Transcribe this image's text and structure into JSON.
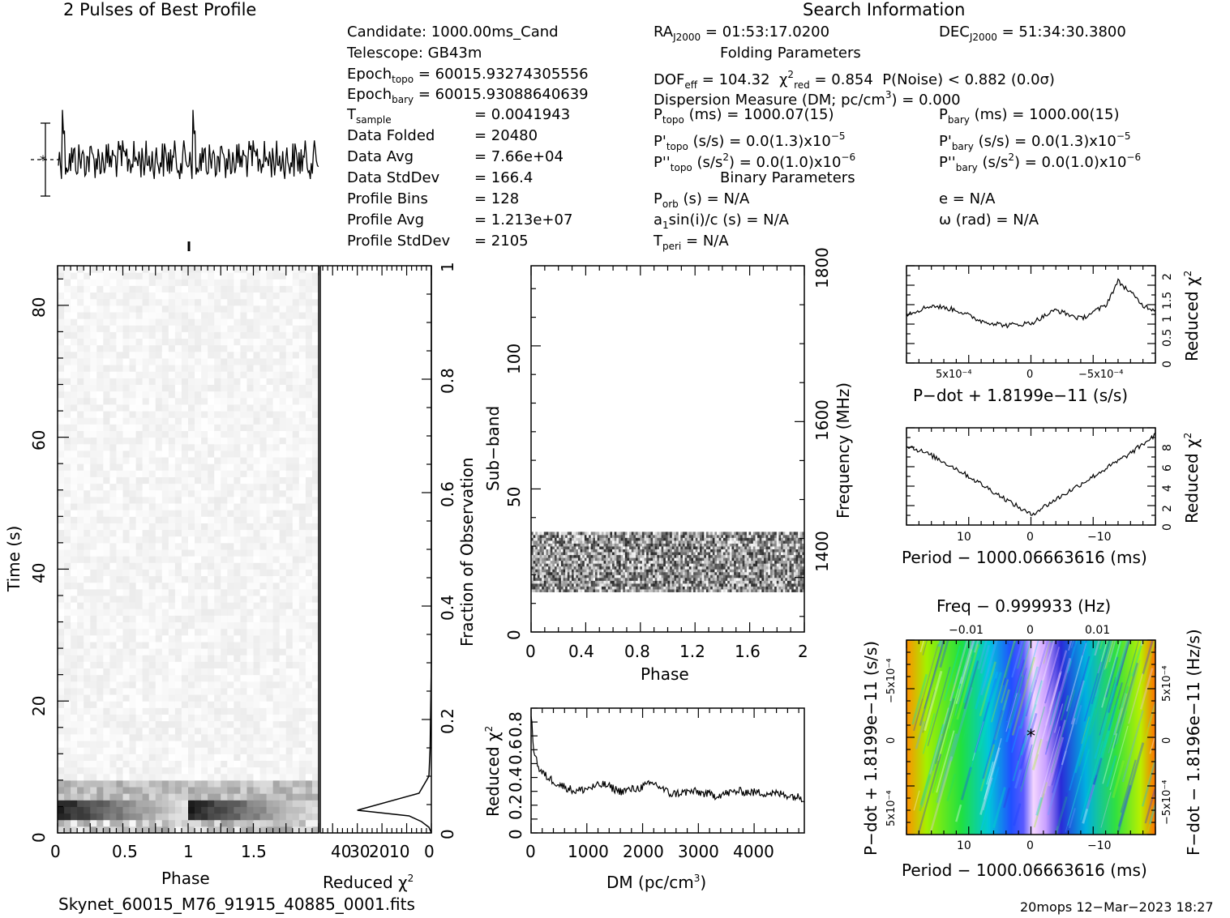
{
  "header": {
    "profile_title": "2 Pulses of Best Profile",
    "search_title": "Search Information",
    "folding_title": "Folding Parameters",
    "binary_title": "Binary Parameters"
  },
  "info": {
    "candidate": "Candidate:  1000.00ms_Cand",
    "telescope": "Telescope:  GB43m",
    "epoch_topo": "= 60015.93274305556",
    "epoch_bary": "= 60015.93088640639",
    "t_sample": "=   0.0041943",
    "data_folded_label": "Data Folded",
    "data_folded": "=   20480",
    "data_avg_label": "Data Avg",
    "data_avg": "=   7.66e+04",
    "data_stddev_label": "Data StdDev",
    "data_stddev": "=   166.4",
    "profile_bins_label": "Profile Bins",
    "profile_bins": "=   128",
    "profile_avg_label": "Profile Avg",
    "profile_avg": "=   1.213e+07",
    "profile_stddev_label": "Profile StdDev",
    "profile_stddev": "=   2105"
  },
  "search": {
    "ra": "= 01:53:17.0200",
    "dec": "= 51:34:30.3800",
    "dof": "= 104.32",
    "chi2": "= 0.854",
    "pnoise": "P(Noise) < 0.882  (0.0σ)",
    "dm_line": "Dispersion Measure (DM; pc/cm",
    "dm_value": ") = 0.000",
    "p_topo": "(ms) =  1000.07(15)",
    "p_bary": "(ms) =  1000.00(15)",
    "pd_topo": "(s/s) = 0.0(1.3)x10",
    "pd_topo_exp": "−5",
    "pd_bary": "(s/s) = 0.0(1.3)x10",
    "pd_bary_exp": "−5",
    "pdd_topo": "(s/s",
    "pdd_topo_tail": ") = 0.0(1.0)x10",
    "pdd_topo_exp": "−6",
    "pdd_bary": "(s/s",
    "pdd_bary_tail": ") = 0.0(1.0)x10",
    "pdd_bary_exp": "−6",
    "porb": "(s) = N/A",
    "e": "e = N/A",
    "a1": "sin(i)/c (s) = N/A",
    "omega": "ω (rad) = N/A",
    "tperi": "= N/A"
  },
  "footer": {
    "filename": "Skynet_60015_M76_91915_40885_0001.fits",
    "stamp": "20mops 12−Mar−2023 18:27"
  },
  "axes": {
    "phase": "Phase",
    "time": "Time (s)",
    "reduced_chi2": "Reduced χ",
    "fraction": "Fraction of Observation",
    "subband": "Sub−band",
    "frequency": "Frequency (MHz)",
    "dm": "DM (pc/cm",
    "pdot": "P−dot + 1.8199e−11 (s/s)",
    "period": "Period − 1000.06663616 (ms)",
    "freq": "Freq − 0.999933 (Hz)",
    "fdot": "F−dot − 1.8196e−11 (Hz/s)"
  },
  "colors": {
    "ink": "#000000",
    "bg": "#ffffff"
  },
  "chart_data": [
    {
      "type": "line",
      "title": "2 Pulses of Best Profile",
      "x_range": [
        0,
        2
      ],
      "note_shape": "two identical noisy pulses, peak near phase 0.05 and 1.05"
    },
    {
      "type": "heatmap",
      "name": "time-phase",
      "xlabel": "Phase",
      "ylabel": "Time (s)",
      "xlim": [
        0,
        2
      ],
      "ylim": [
        0,
        87
      ],
      "xticks": [
        "0",
        "0.5",
        "1",
        "1.5"
      ],
      "yticks": [
        "0",
        "20",
        "40",
        "60",
        "80"
      ]
    },
    {
      "type": "line",
      "name": "time-chi2",
      "xlabel": "Reduced χ²",
      "xticks": [
        "40",
        "30",
        "20",
        "10",
        "0"
      ],
      "yticks_right": [
        "0",
        "0.2",
        "0.4",
        "0.6",
        "0.8",
        "1"
      ],
      "ylabel_right": "Fraction of Observation",
      "x": [
        0,
        0,
        0.5,
        1,
        5,
        30,
        9,
        4,
        1,
        0.5,
        0
      ],
      "y": [
        1,
        0.3,
        0.15,
        0.1,
        0.07,
        0.04,
        0.03,
        0.02,
        0.01,
        0.005,
        0
      ]
    },
    {
      "type": "heatmap",
      "name": "subband-phase",
      "xlabel": "Phase",
      "ylabel": "Sub−band",
      "ylabel_right": "Frequency (MHz)",
      "xlim": [
        0,
        2
      ],
      "ylim": [
        0,
        128
      ],
      "xticks": [
        "0",
        "0.4",
        "0.8",
        "1.2",
        "1.6",
        "2"
      ],
      "yticks": [
        "0",
        "50",
        "100"
      ],
      "yticks_right": [
        "1400",
        "1600",
        "1800"
      ],
      "active_band": [
        14,
        35
      ]
    },
    {
      "type": "line",
      "name": "dm-chi2",
      "xlabel": "DM (pc/cm³)",
      "ylabel": "Reduced χ²",
      "xticks": [
        "0",
        "1000",
        "2000",
        "3000",
        "4000"
      ],
      "yticks": [
        "0",
        "0.2",
        "0.4",
        "0.6",
        "0.8"
      ],
      "xlim": [
        0,
        4900
      ],
      "ylim": [
        0,
        0.9
      ],
      "x": [
        0,
        50,
        150,
        300,
        500,
        800,
        1000,
        1300,
        1600,
        1900,
        2200,
        2500,
        2900,
        3300,
        3700,
        4100,
        4500,
        4900
      ],
      "y": [
        0.85,
        0.6,
        0.45,
        0.4,
        0.35,
        0.3,
        0.32,
        0.35,
        0.3,
        0.32,
        0.36,
        0.28,
        0.3,
        0.27,
        0.3,
        0.29,
        0.28,
        0.25
      ]
    },
    {
      "type": "line",
      "name": "pdot-chi2",
      "xlabel": "P−dot + 1.8199e−11 (s/s)",
      "ylabel_right": "Reduced χ²",
      "xticks": [
        "5x10⁻⁴",
        "0",
        "−5x10⁻⁴"
      ],
      "yticks_right": [
        "0",
        "0.5",
        "1",
        "1.5",
        "2"
      ],
      "ylim": [
        0,
        2.2
      ],
      "x": [
        0,
        0.1,
        0.2,
        0.3,
        0.4,
        0.5,
        0.6,
        0.7,
        0.8,
        0.85,
        0.9,
        0.95,
        1
      ],
      "y": [
        1.1,
        1.3,
        1.2,
        0.95,
        0.85,
        0.9,
        1.2,
        1.0,
        1.3,
        1.85,
        1.6,
        1.3,
        1.2
      ]
    },
    {
      "type": "line",
      "name": "period-chi2",
      "xlabel": "Period − 1000.06663616 (ms)",
      "ylabel_right": "Reduced χ²",
      "xticks": [
        "10",
        "0",
        "−10"
      ],
      "yticks_right": [
        "0",
        "2",
        "4",
        "6",
        "8"
      ],
      "ylim": [
        0,
        9.5
      ],
      "x": [
        0,
        0.1,
        0.2,
        0.3,
        0.4,
        0.5,
        0.6,
        0.7,
        0.8,
        0.9,
        1
      ],
      "y": [
        7.8,
        6.8,
        5.5,
        4.0,
        2.5,
        1.0,
        2.5,
        4.0,
        5.5,
        7.0,
        8.8
      ]
    },
    {
      "type": "heatmap",
      "name": "period-pdot",
      "xlabel": "Period − 1000.06663616 (ms)",
      "ylabel": "P−dot + 1.8199e−11 (s/s)",
      "top_label": "Freq − 0.999933 (Hz)",
      "right_label": "F−dot − 1.8196e−11 (Hz/s)",
      "xticks": [
        "10",
        "0",
        "−10"
      ],
      "top_ticks": [
        "−0.01",
        "0",
        "0.01"
      ],
      "yticks": [
        "5x10⁻⁴",
        "0",
        "−5x10⁻⁴"
      ],
      "right_ticks": [
        "−5x10⁻⁴",
        "0",
        "5x10⁻⁴"
      ]
    }
  ]
}
